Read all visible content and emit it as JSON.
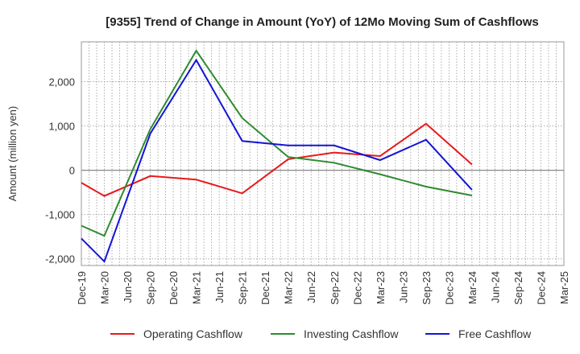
{
  "chart_data": {
    "type": "line",
    "title": "[9355]  Trend of Change in Amount (YoY) of 12Mo Moving Sum of Cashflows",
    "xlabel": "",
    "ylabel": "Amount (million yen)",
    "ylim": [
      -2150,
      2900
    ],
    "yticks": [
      2000,
      1000,
      0,
      -1000,
      -2000
    ],
    "ytick_labels": [
      "2,000",
      "1,000",
      "0",
      "-1,000",
      "-2,000"
    ],
    "grid": true,
    "legend_position": "bottom",
    "categories": [
      "Dec-19",
      "Mar-20",
      "Jun-20",
      "Sep-20",
      "Dec-20",
      "Mar-21",
      "Jun-21",
      "Sep-21",
      "Dec-21",
      "Mar-22",
      "Jun-22",
      "Sep-22",
      "Dec-22",
      "Mar-23",
      "Jun-23",
      "Sep-23",
      "Dec-23",
      "Mar-24",
      "Jun-24",
      "Sep-24",
      "Dec-24",
      "Mar-25"
    ],
    "series": [
      {
        "name": "Operating Cashflow",
        "color": "#e8191b",
        "values": [
          -280,
          -580,
          null,
          -130,
          null,
          -210,
          null,
          -520,
          null,
          250,
          null,
          400,
          null,
          320,
          null,
          1050,
          null,
          130,
          null,
          null,
          null,
          null
        ]
      },
      {
        "name": "Investing Cashflow",
        "color": "#2e8b2e",
        "values": [
          -1250,
          -1480,
          null,
          930,
          null,
          2700,
          null,
          1180,
          null,
          300,
          null,
          170,
          null,
          -90,
          null,
          -370,
          null,
          -570,
          null,
          null,
          null,
          null
        ]
      },
      {
        "name": "Free Cashflow",
        "color": "#1515d6",
        "values": [
          -1540,
          -2060,
          null,
          830,
          null,
          2490,
          null,
          660,
          null,
          560,
          null,
          560,
          null,
          230,
          null,
          690,
          null,
          -440,
          null,
          null,
          null,
          null
        ]
      }
    ]
  }
}
